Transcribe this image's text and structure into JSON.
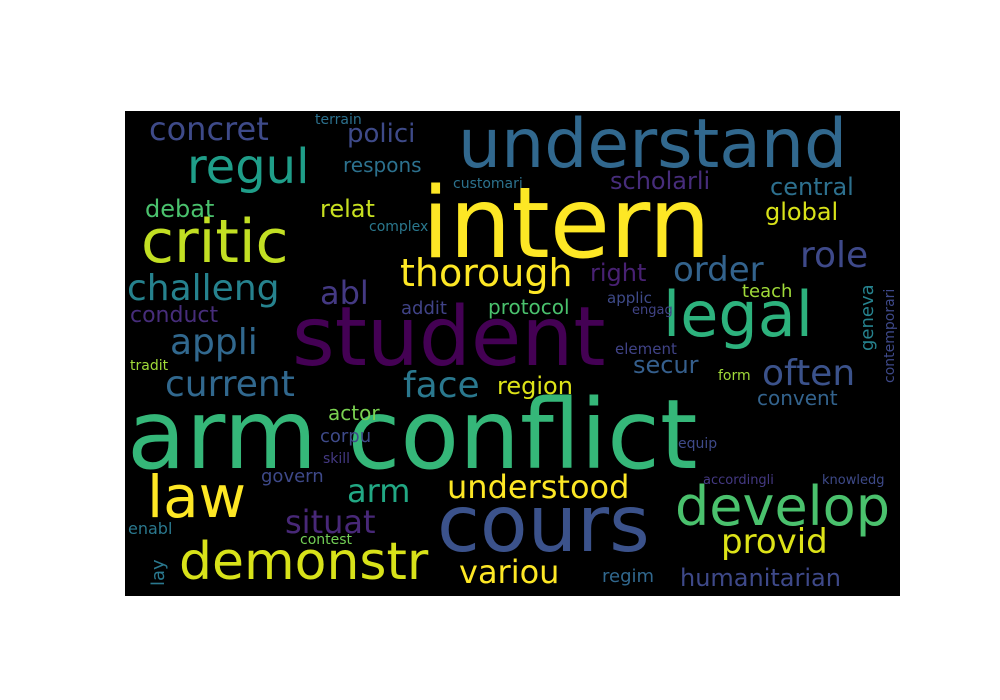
{
  "wordcloud": {
    "background": "#000000",
    "colormap": "viridis",
    "words": [
      {
        "text": "arm conflict",
        "color": "#35b779",
        "orientation": "horizontal"
      },
      {
        "text": "intern",
        "color": "#fde725",
        "orientation": "horizontal"
      },
      {
        "text": "understand",
        "color": "#31688e",
        "orientation": "horizontal"
      },
      {
        "text": "student",
        "color": "#440154",
        "orientation": "horizontal"
      },
      {
        "text": "cours",
        "color": "#3b528b",
        "orientation": "horizontal"
      },
      {
        "text": "critic",
        "color": "#c2df23",
        "orientation": "horizontal"
      },
      {
        "text": "legal",
        "color": "#2db27d",
        "orientation": "horizontal"
      },
      {
        "text": "law",
        "color": "#fde725",
        "orientation": "horizontal"
      },
      {
        "text": "develop",
        "color": "#4ac16d",
        "orientation": "horizontal"
      },
      {
        "text": "demonstr",
        "color": "#d8e219",
        "orientation": "horizontal"
      },
      {
        "text": "regul",
        "color": "#1f9e89",
        "orientation": "horizontal"
      },
      {
        "text": "concret",
        "color": "#3e4a89",
        "orientation": "horizontal"
      },
      {
        "text": "thorough",
        "color": "#fde725",
        "orientation": "horizontal"
      },
      {
        "text": "challeng",
        "color": "#26828e",
        "orientation": "horizontal"
      },
      {
        "text": "order",
        "color": "#33638d",
        "orientation": "horizontal"
      },
      {
        "text": "role",
        "color": "#3e4989",
        "orientation": "horizontal"
      },
      {
        "text": "abl",
        "color": "#443983",
        "orientation": "horizontal"
      },
      {
        "text": "appli",
        "color": "#31688e",
        "orientation": "horizontal"
      },
      {
        "text": "current",
        "color": "#31688e",
        "orientation": "horizontal"
      },
      {
        "text": "face",
        "color": "#2a788e",
        "orientation": "horizontal"
      },
      {
        "text": "often",
        "color": "#3b528b",
        "orientation": "horizontal"
      },
      {
        "text": "arm",
        "color": "#22a884",
        "orientation": "horizontal"
      },
      {
        "text": "understood",
        "color": "#fde725",
        "orientation": "horizontal"
      },
      {
        "text": "situat",
        "color": "#482878",
        "orientation": "horizontal"
      },
      {
        "text": "provid",
        "color": "#dde318",
        "orientation": "horizontal"
      },
      {
        "text": "variou",
        "color": "#fde725",
        "orientation": "horizontal"
      },
      {
        "text": "humanitarian",
        "color": "#3e4989",
        "orientation": "horizontal"
      },
      {
        "text": "polici",
        "color": "#3e4a89",
        "orientation": "horizontal"
      },
      {
        "text": "scholarli",
        "color": "#472d7b",
        "orientation": "horizontal"
      },
      {
        "text": "central",
        "color": "#2d708e",
        "orientation": "horizontal"
      },
      {
        "text": "global",
        "color": "#d8e219",
        "orientation": "horizontal"
      },
      {
        "text": "relat",
        "color": "#c8e020",
        "orientation": "horizontal"
      },
      {
        "text": "debat",
        "color": "#4ac16d",
        "orientation": "horizontal"
      },
      {
        "text": "region",
        "color": "#dde318",
        "orientation": "horizontal"
      },
      {
        "text": "secur",
        "color": "#355f8d",
        "orientation": "horizontal"
      },
      {
        "text": "right",
        "color": "#482173",
        "orientation": "horizontal"
      },
      {
        "text": "conduct",
        "color": "#472d7b",
        "orientation": "horizontal"
      },
      {
        "text": "protocol",
        "color": "#4ac16d",
        "orientation": "horizontal"
      },
      {
        "text": "addit",
        "color": "#404387",
        "orientation": "horizontal"
      },
      {
        "text": "respons",
        "color": "#2c718e",
        "orientation": "horizontal"
      },
      {
        "text": "actor",
        "color": "#7ad151",
        "orientation": "horizontal"
      },
      {
        "text": "convent",
        "color": "#33638d",
        "orientation": "horizontal"
      },
      {
        "text": "corpu",
        "color": "#3e4a89",
        "orientation": "horizontal"
      },
      {
        "text": "govern",
        "color": "#3e4989",
        "orientation": "horizontal"
      },
      {
        "text": "regim",
        "color": "#31688e",
        "orientation": "horizontal"
      },
      {
        "text": "teach",
        "color": "#a0da39",
        "orientation": "horizontal"
      },
      {
        "text": "applic",
        "color": "#3e4a89",
        "orientation": "horizontal"
      },
      {
        "text": "engag",
        "color": "#414487",
        "orientation": "horizontal"
      },
      {
        "text": "element",
        "color": "#404387",
        "orientation": "horizontal"
      },
      {
        "text": "form",
        "color": "#a0da39",
        "orientation": "horizontal"
      },
      {
        "text": "equip",
        "color": "#3e4a89",
        "orientation": "horizontal"
      },
      {
        "text": "accordingli",
        "color": "#443983",
        "orientation": "horizontal"
      },
      {
        "text": "knowledg",
        "color": "#3e4a89",
        "orientation": "horizontal"
      },
      {
        "text": "customari",
        "color": "#2c728e",
        "orientation": "horizontal"
      },
      {
        "text": "complex",
        "color": "#2a788e",
        "orientation": "horizontal"
      },
      {
        "text": "terrain",
        "color": "#2c718e",
        "orientation": "horizontal"
      },
      {
        "text": "tradit",
        "color": "#a0da39",
        "orientation": "horizontal"
      },
      {
        "text": "skill",
        "color": "#443983",
        "orientation": "horizontal"
      },
      {
        "text": "contest",
        "color": "#73d056",
        "orientation": "horizontal"
      },
      {
        "text": "enabl",
        "color": "#2a788e",
        "orientation": "horizontal"
      },
      {
        "text": "lay",
        "color": "#2a788e",
        "orientation": "vertical"
      },
      {
        "text": "geneva",
        "color": "#26828e",
        "orientation": "vertical"
      },
      {
        "text": "contemporari",
        "color": "#3e4989",
        "orientation": "vertical"
      }
    ]
  }
}
